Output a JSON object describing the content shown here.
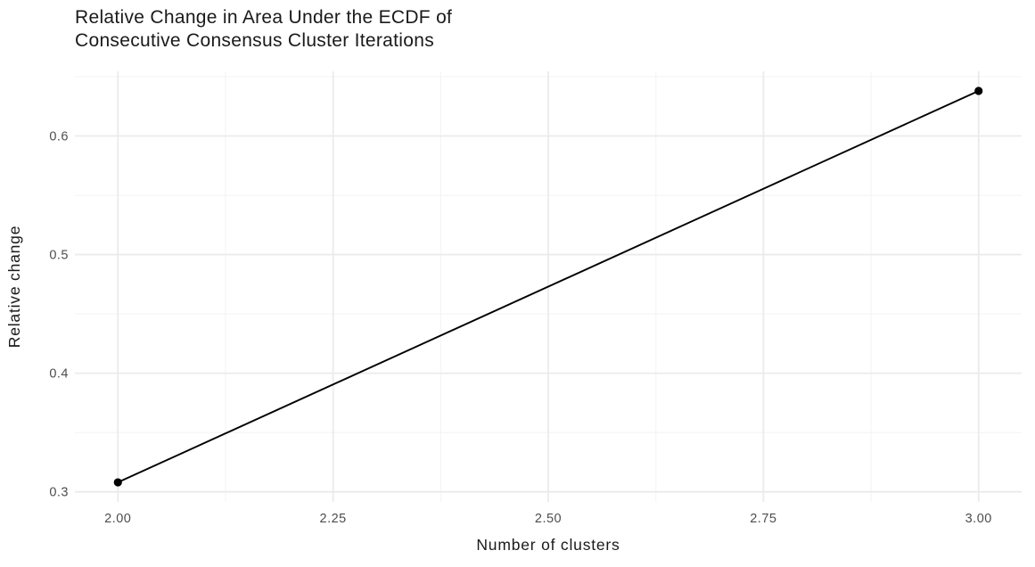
{
  "header": {
    "title_lines": [
      "Relative Change in Area Under the ECDF of",
      "Consecutive Consensus Cluster Iterations"
    ]
  },
  "chart_data": {
    "type": "line",
    "title": "Relative Change in Area Under the ECDF of Consecutive Consensus Cluster Iterations",
    "xlabel": "Number of clusters",
    "ylabel": "Relative change",
    "x": [
      2.0,
      3.0
    ],
    "y": [
      0.308,
      0.638
    ],
    "xlim": [
      1.95,
      3.05
    ],
    "ylim": [
      0.2915,
      0.6545
    ],
    "x_ticks": [
      {
        "value": 2.0,
        "label": "2.00"
      },
      {
        "value": 2.25,
        "label": "2.25"
      },
      {
        "value": 2.5,
        "label": "2.50"
      },
      {
        "value": 2.75,
        "label": "2.75"
      },
      {
        "value": 3.0,
        "label": "3.00"
      }
    ],
    "y_ticks": [
      {
        "value": 0.3,
        "label": "0.3"
      },
      {
        "value": 0.4,
        "label": "0.4"
      },
      {
        "value": 0.5,
        "label": "0.5"
      },
      {
        "value": 0.6,
        "label": "0.6"
      }
    ],
    "x_minor_ticks": [
      2.125,
      2.375,
      2.625,
      2.875
    ],
    "y_minor_ticks": [
      0.35,
      0.45,
      0.55,
      0.65
    ],
    "grid": "on",
    "legend": "none",
    "colors": {
      "line": "#000000",
      "point": "#000000",
      "grid_major": "#ebebeb",
      "grid_minor": "#f4f4f4",
      "tick_text": "#4d4d4d",
      "axis_title_text": "#1a1a1a",
      "title_text": "#1a1a1a",
      "background": "#ffffff"
    }
  }
}
